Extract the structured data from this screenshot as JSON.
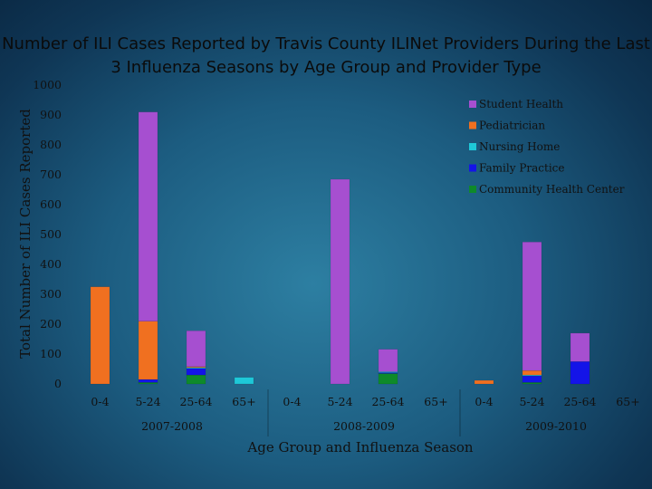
{
  "chart_data": {
    "type": "bar",
    "stacked": true,
    "title": "Number of ILI Cases Reported by Travis County ILINet Providers During the Last 3 Influenza Seasons by Age Group and Provider Type",
    "ylabel": "Total Number of ILI Cases Reported",
    "xlabel": "Age Group and Influenza Season",
    "ylim": [
      0,
      1000
    ],
    "yticks": [
      0,
      100,
      200,
      300,
      400,
      500,
      600,
      700,
      800,
      900,
      1000
    ],
    "legend_position": "top-right",
    "seasons": [
      {
        "label": "2007-2008",
        "groups": [
          "0-4",
          "5-24",
          "25-64",
          "65+"
        ]
      },
      {
        "label": "2008-2009",
        "groups": [
          "0-4",
          "5-24",
          "25-64",
          "65+"
        ]
      },
      {
        "label": "2009-2010",
        "groups": [
          "0-4",
          "5-24",
          "25-64",
          "65+"
        ]
      }
    ],
    "categories": [
      "0-4",
      "5-24",
      "25-64",
      "65+",
      "0-4",
      "5-24",
      "25-64",
      "65+",
      "0-4",
      "5-24",
      "25-64",
      "65+"
    ],
    "series": [
      {
        "name": "Community Health Center",
        "color": "#0e8a2a",
        "values": [
          0,
          5,
          30,
          0,
          0,
          0,
          35,
          0,
          0,
          5,
          0,
          0
        ]
      },
      {
        "name": "Family Practice",
        "color": "#1414e8",
        "values": [
          0,
          10,
          22,
          0,
          0,
          0,
          3,
          0,
          0,
          22,
          75,
          0
        ]
      },
      {
        "name": "Nursing Home",
        "color": "#1ec8d8",
        "values": [
          0,
          0,
          3,
          22,
          0,
          0,
          3,
          0,
          0,
          3,
          0,
          0
        ]
      },
      {
        "name": "Pediatrician",
        "color": "#f07020",
        "values": [
          325,
          195,
          3,
          0,
          0,
          0,
          0,
          0,
          12,
          15,
          0,
          0
        ]
      },
      {
        "name": "Student Health",
        "color": "#a64fd0",
        "values": [
          0,
          700,
          120,
          0,
          0,
          685,
          75,
          0,
          0,
          430,
          95,
          0
        ]
      }
    ],
    "legend_order": [
      "Student Health",
      "Pediatrician",
      "Nursing Home",
      "Family Practice",
      "Community Health Center"
    ]
  }
}
